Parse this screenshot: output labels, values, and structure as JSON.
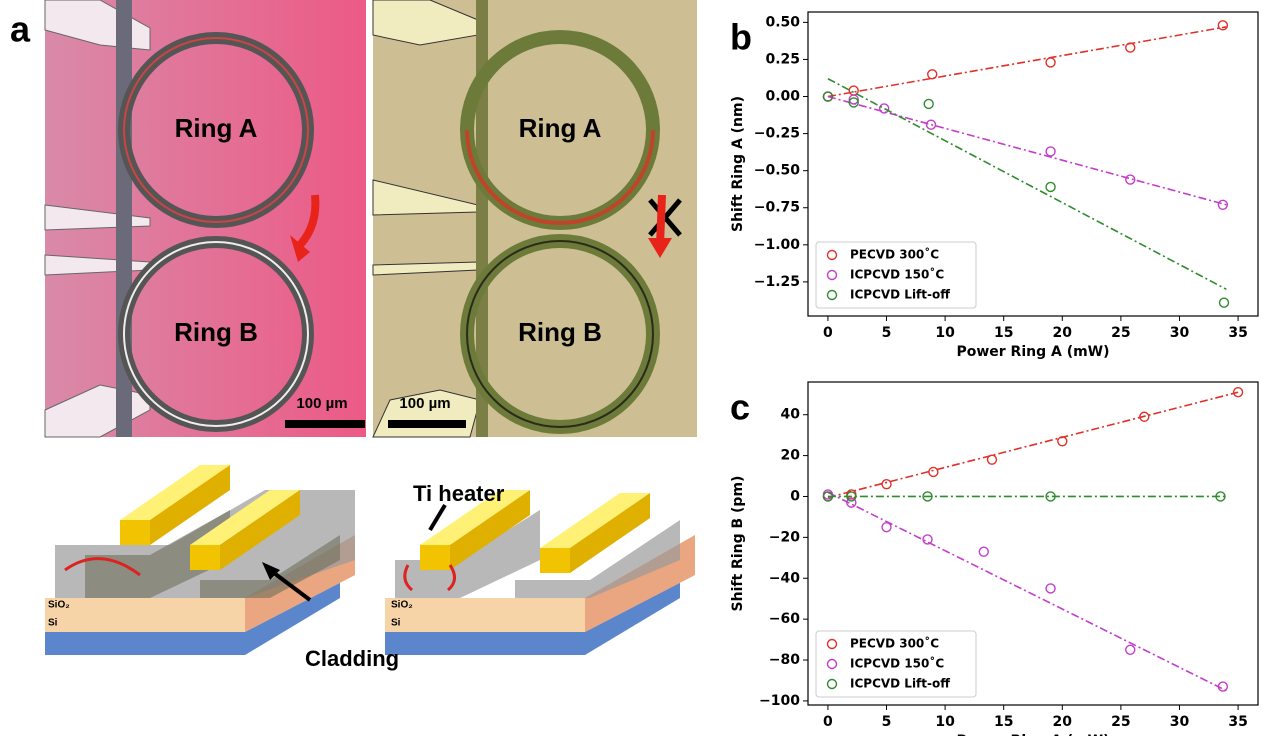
{
  "panels": {
    "a": {
      "label": "a",
      "ring_a": "Ring A",
      "ring_b": "Ring B",
      "ring_a_2": "Ring A",
      "ring_b_2": "Ring B",
      "scale_1": "100 µm",
      "scale_2": "100 µm",
      "heater": "Ti heater",
      "cladding": "Cladding",
      "sio2_1": "SiO₂",
      "si_1": "Si",
      "sio2_2": "SiO₂",
      "si_2": "Si"
    }
  },
  "chart_data": [
    {
      "type": "scatter",
      "label": "b",
      "xlabel": "Power Ring A (mW)",
      "ylabel": "Shift Ring A (nm)",
      "xlim": [
        -1.7,
        36.7
      ],
      "ylim": [
        -1.48,
        0.57
      ],
      "xticks": [
        0,
        5,
        10,
        15,
        20,
        25,
        30,
        35
      ],
      "yticks": [
        {
          "value": 0.5,
          "label": "0.50"
        },
        {
          "value": 0.25,
          "label": "0.25"
        },
        {
          "value": 0,
          "label": "0.00"
        },
        {
          "value": -0.25,
          "label": "−0.25"
        },
        {
          "value": -0.5,
          "label": "−0.50"
        },
        {
          "value": -0.75,
          "label": "−0.75"
        },
        {
          "value": -1,
          "label": "−1.00"
        },
        {
          "value": -1.25,
          "label": "−1.25"
        }
      ],
      "legend": "lower left",
      "series": [
        {
          "name": "PECVD 300˚C",
          "color": "#e0302a",
          "x": [
            0,
            2.2,
            8.9,
            19,
            25.8,
            33.7
          ],
          "values": [
            0,
            0.04,
            0.15,
            0.23,
            0.33,
            0.48
          ],
          "fit_x": [
            0,
            34
          ],
          "fit": [
            0.0,
            0.47
          ]
        },
        {
          "name": "ICPCVD 150˚C",
          "color": "#c43ccc",
          "x": [
            0,
            2.2,
            4.8,
            8.8,
            19,
            25.8,
            33.7
          ],
          "values": [
            0,
            -0.02,
            -0.08,
            -0.19,
            -0.37,
            -0.56,
            -0.73
          ],
          "fit_x": [
            0,
            34
          ],
          "fit": [
            0.0,
            -0.73
          ]
        },
        {
          "name": "ICPCVD Lift-off",
          "color": "#2e8b2e",
          "x": [
            0,
            2.2,
            8.6,
            19,
            33.8
          ],
          "values": [
            0,
            -0.04,
            -0.05,
            -0.61,
            -1.39
          ],
          "fit_x": [
            0,
            34
          ],
          "fit": [
            0.12,
            -1.3
          ]
        }
      ]
    },
    {
      "type": "scatter",
      "label": "c",
      "xlabel": "Power Ring A (mW)",
      "ylabel": "Shift Ring B (pm)",
      "xlim": [
        -1.7,
        36.7
      ],
      "ylim": [
        -102,
        56
      ],
      "xticks": [
        0,
        5,
        10,
        15,
        20,
        25,
        30,
        35
      ],
      "yticks": [
        {
          "value": -100,
          "label": "−100"
        },
        {
          "value": -80,
          "label": "−80"
        },
        {
          "value": -60,
          "label": "−60"
        },
        {
          "value": -40,
          "label": "−40"
        },
        {
          "value": -20,
          "label": "−20"
        },
        0,
        20,
        40
      ],
      "legend": "lower left",
      "series": [
        {
          "name": "PECVD 300˚C",
          "color": "#e0302a",
          "x": [
            0,
            2,
            5,
            9,
            14,
            20,
            27,
            35
          ],
          "values": [
            0,
            1,
            6,
            12,
            18,
            27,
            39,
            51
          ],
          "fit_x": [
            0,
            35
          ],
          "fit": [
            -0.5,
            51
          ]
        },
        {
          "name": "ICPCVD 150˚C",
          "color": "#c43ccc",
          "x": [
            0,
            2,
            5,
            8.5,
            13.3,
            19,
            25.8,
            33.7
          ],
          "values": [
            1,
            -3,
            -15,
            -21,
            -27,
            -45,
            -75,
            -93
          ],
          "fit_x": [
            0,
            34
          ],
          "fit": [
            2,
            -95
          ]
        },
        {
          "name": "ICPCVD Lift-off",
          "color": "#2e8b2e",
          "x": [
            0,
            2,
            8.5,
            19,
            33.5
          ],
          "values": [
            0,
            0,
            0,
            0,
            0
          ],
          "fit_x": [
            0,
            34
          ],
          "fit": [
            0,
            0
          ]
        }
      ]
    }
  ]
}
